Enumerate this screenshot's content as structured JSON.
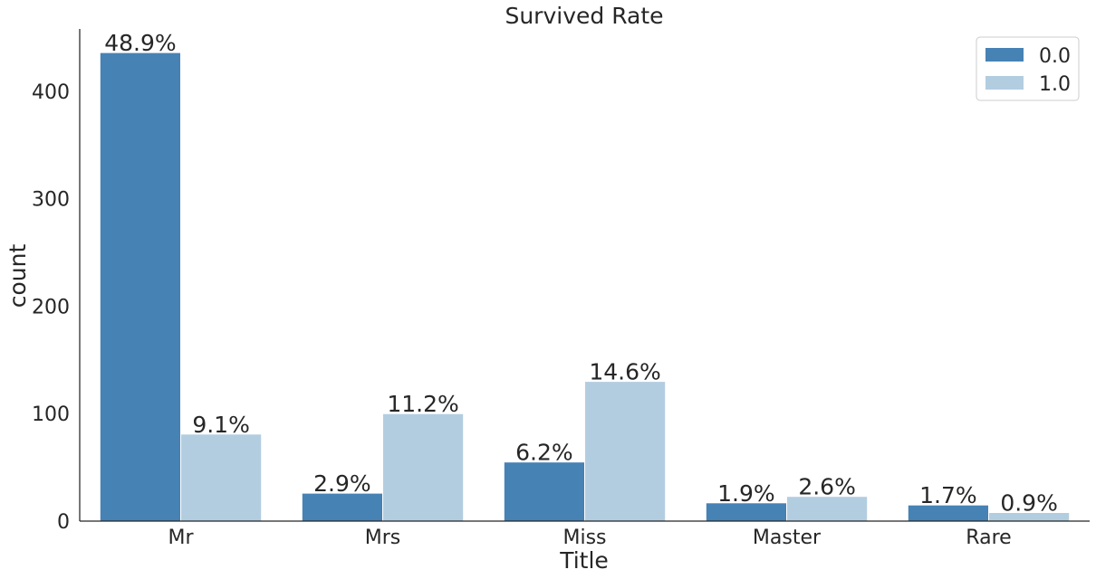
{
  "chart_data": {
    "type": "bar",
    "title": "Survived Rate",
    "xlabel": "Title",
    "ylabel": "count",
    "categories": [
      "Mr",
      "Mrs",
      "Miss",
      "Master",
      "Rare"
    ],
    "series": [
      {
        "name": "0.0",
        "color": "#4682b4",
        "values": [
          436,
          26,
          55,
          17,
          15
        ],
        "labels": [
          "48.9%",
          "2.9%",
          "6.2%",
          "1.9%",
          "1.7%"
        ]
      },
      {
        "name": "1.0",
        "color": "#b3cde0",
        "values": [
          81,
          100,
          130,
          23,
          8
        ],
        "labels": [
          "9.1%",
          "11.2%",
          "14.6%",
          "2.6%",
          "0.9%"
        ]
      }
    ],
    "yticks": [
      0,
      100,
      200,
      300,
      400
    ],
    "ylim": [
      0,
      458
    ],
    "grid": false,
    "legend_position": "top-right"
  }
}
